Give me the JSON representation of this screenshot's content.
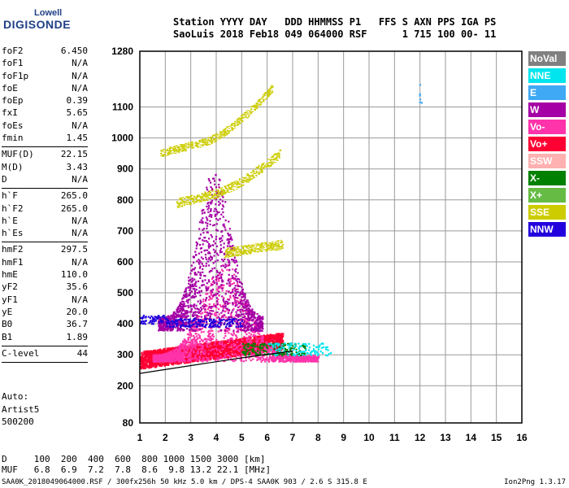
{
  "logo": {
    "line1": "Lowell",
    "line2": "DIGISONDE"
  },
  "header": {
    "line1": "Station YYYY DAY   DDD HHMMSS P1   FFS S AXN PPS IGA PS",
    "line2": "SaoLuis 2018 Feb18 049 064000 RSF      1 715 100 00- 11"
  },
  "params": {
    "group1": [
      {
        "k": "foF2",
        "v": "6.450"
      },
      {
        "k": "foF1",
        "v": "N/A"
      },
      {
        "k": "foF1p",
        "v": "N/A"
      },
      {
        "k": "foE",
        "v": "N/A"
      },
      {
        "k": "foEp",
        "v": "0.39"
      },
      {
        "k": "fxI",
        "v": "5.65"
      },
      {
        "k": "foEs",
        "v": "N/A"
      },
      {
        "k": "fmin",
        "v": "1.45"
      }
    ],
    "group2": [
      {
        "k": "MUF(D)",
        "v": "22.15"
      },
      {
        "k": "M(D)",
        "v": "3.43"
      },
      {
        "k": "D",
        "v": "N/A"
      }
    ],
    "group3": [
      {
        "k": "h`F",
        "v": "265.0"
      },
      {
        "k": "h`F2",
        "v": "265.0"
      },
      {
        "k": "h`E",
        "v": "N/A"
      },
      {
        "k": "h`Es",
        "v": "N/A"
      }
    ],
    "group4": [
      {
        "k": "hmF2",
        "v": "297.5"
      },
      {
        "k": "hmF1",
        "v": "N/A"
      },
      {
        "k": "hmE",
        "v": "110.0"
      },
      {
        "k": "yF2",
        "v": "35.6"
      },
      {
        "k": "yF1",
        "v": "N/A"
      },
      {
        "k": "yE",
        "v": "20.0"
      },
      {
        "k": "B0",
        "v": "36.7"
      },
      {
        "k": "B1",
        "v": "1.89"
      }
    ],
    "group5": [
      {
        "k": "C-level",
        "v": "44"
      }
    ]
  },
  "auto": {
    "line1": "Auto:",
    "line2": "Artist5",
    "line3": "500200"
  },
  "legend": [
    {
      "label": "NoVal",
      "color": "#808080"
    },
    {
      "label": "NNE",
      "color": "#00e5ee"
    },
    {
      "label": "E",
      "color": "#3fa9f5"
    },
    {
      "label": "W",
      "color": "#a500a5"
    },
    {
      "label": "Vo-",
      "color": "#ff33aa"
    },
    {
      "label": "Vo+",
      "color": "#ff0033"
    },
    {
      "label": "SSW",
      "color": "#ffb0b0"
    },
    {
      "label": "X-",
      "color": "#008000"
    },
    {
      "label": "X+",
      "color": "#66bb44"
    },
    {
      "label": "SSE",
      "color": "#cccc00"
    },
    {
      "label": "NNW",
      "color": "#2200dd"
    }
  ],
  "footer": {
    "line1": "D     100  200  400  600  800 1000 1500 3000 [km]",
    "line2": "MUF   6.8  6.9  7.2  7.8  8.6  9.8 13.2 22.1 [MHz]",
    "line3": "SAA0K_2018049064000.RSF / 300fx256h 50 kHz 5.0 km / DPS-4 SAA0K 903 / 2.6 S 315.8 E",
    "version": "Ion2Png 1.3.17"
  },
  "chart_data": {
    "type": "scatter",
    "title": "",
    "xlabel": "",
    "ylabel": "",
    "xlim": [
      1,
      16
    ],
    "ylim": [
      80,
      1280
    ],
    "xticks": [
      1,
      2,
      3,
      4,
      5,
      6,
      7,
      8,
      9,
      10,
      11,
      12,
      13,
      14,
      15,
      16
    ],
    "yticks": [
      80,
      200,
      300,
      400,
      500,
      600,
      700,
      800,
      900,
      1000,
      1100,
      1280
    ],
    "grid": true,
    "legend_position": "right",
    "series": [
      {
        "name": "Vo+",
        "color": "#ff0033",
        "region": {
          "x": [
            1.0,
            6.6
          ],
          "y": [
            255,
            360
          ]
        }
      },
      {
        "name": "Vo-",
        "color": "#ff33aa",
        "region": {
          "x": [
            1.5,
            8.0
          ],
          "y": [
            280,
            600
          ]
        }
      },
      {
        "name": "W",
        "color": "#a500a5",
        "region": {
          "x": [
            1.7,
            5.8
          ],
          "y": [
            380,
            900
          ]
        }
      },
      {
        "name": "NNW",
        "color": "#2200dd",
        "region": {
          "x": [
            1.0,
            5.0
          ],
          "y": [
            390,
            420
          ]
        }
      },
      {
        "name": "SSE",
        "color": "#cccc00",
        "region": {
          "x": [
            1.8,
            6.6
          ],
          "y": [
            620,
            1050
          ]
        }
      },
      {
        "name": "X-",
        "color": "#008000",
        "region": {
          "x": [
            5.0,
            7.5
          ],
          "y": [
            300,
            340
          ]
        }
      },
      {
        "name": "NNE",
        "color": "#00e5ee",
        "region": {
          "x": [
            6.0,
            8.5
          ],
          "y": [
            300,
            660
          ]
        }
      },
      {
        "name": "E",
        "color": "#3fa9f5",
        "region": {
          "x": [
            11.9,
            12.1
          ],
          "y": [
            1100,
            1200
          ]
        }
      }
    ],
    "trace": {
      "x": [
        1.0,
        3.0,
        5.0,
        7.0
      ],
      "y": [
        240,
        265,
        290,
        312
      ]
    }
  }
}
